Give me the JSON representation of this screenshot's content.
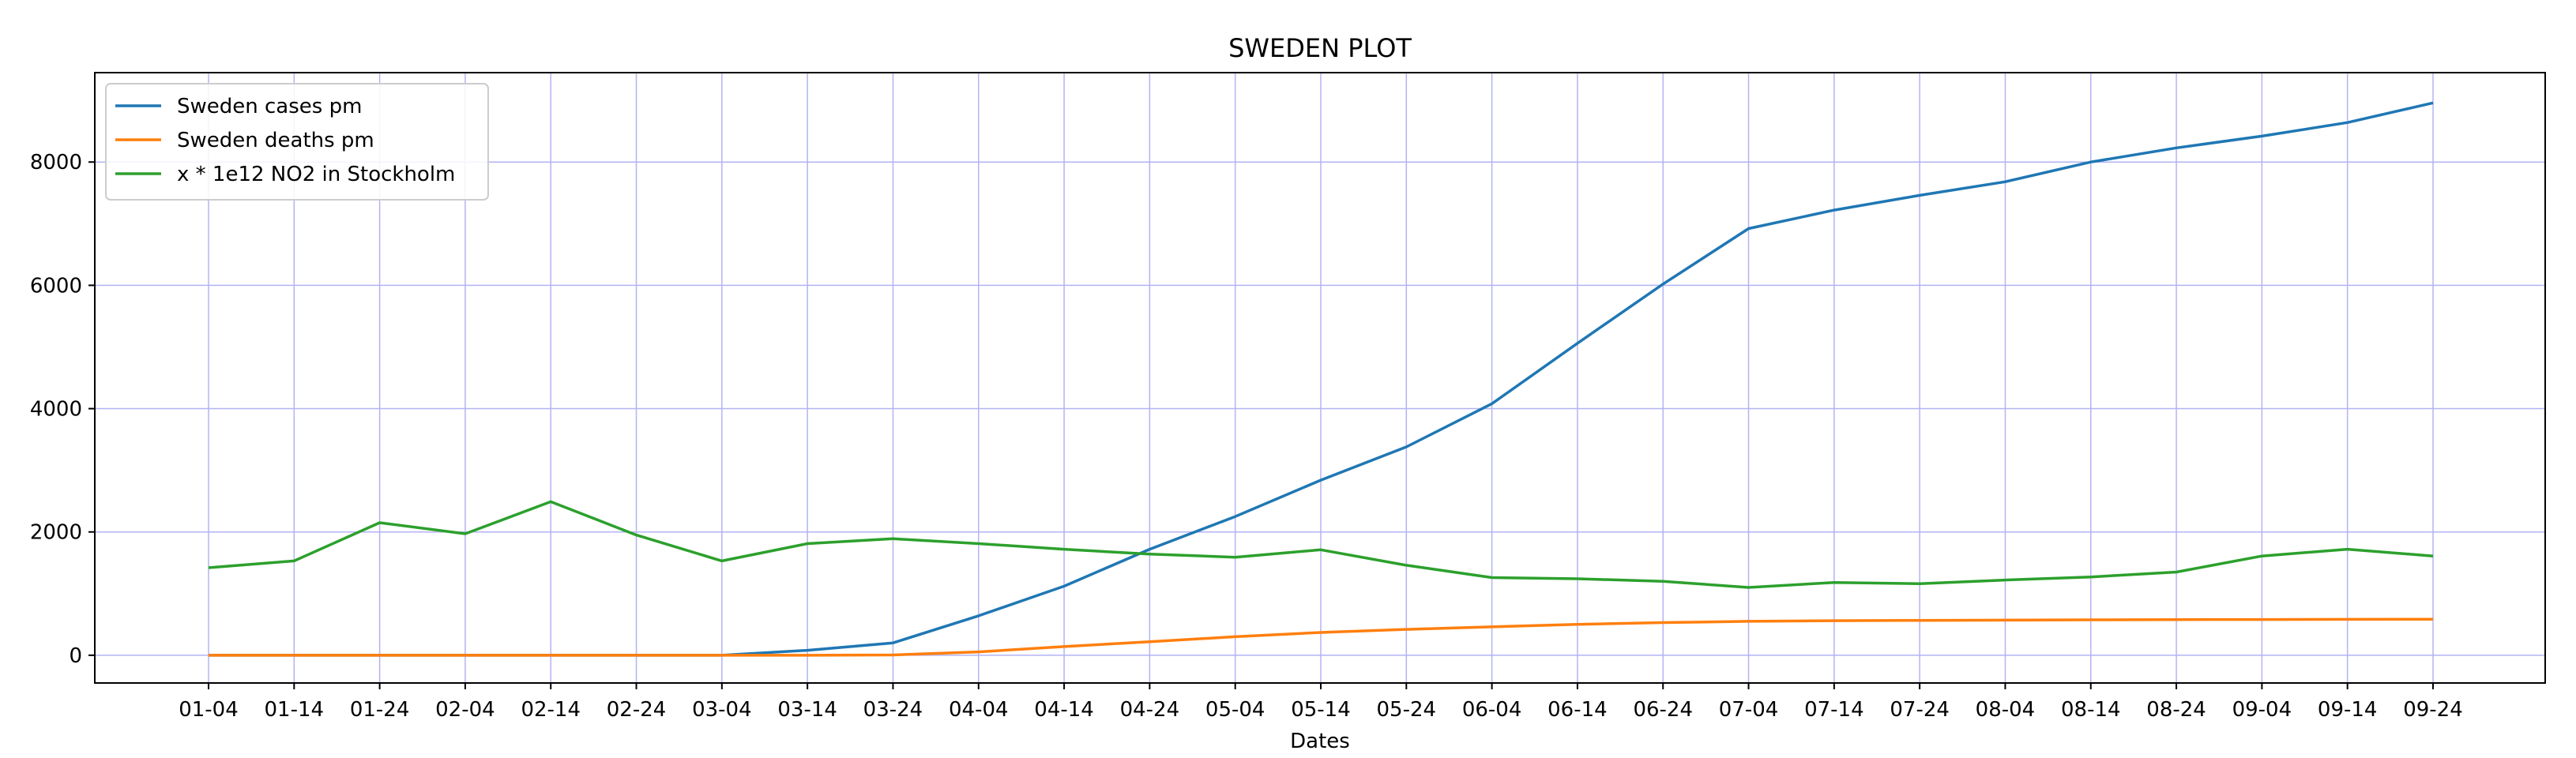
{
  "chart_data": {
    "type": "line",
    "title": "SWEDEN PLOT",
    "xlabel": "Dates",
    "ylabel": "",
    "ylim": [
      -450,
      9450
    ],
    "yticks": [
      0,
      2000,
      4000,
      6000,
      8000
    ],
    "grid": true,
    "grid_color": "#b3b3f5",
    "legend_position": "top-left",
    "categories": [
      "01-04",
      "01-14",
      "01-24",
      "02-04",
      "02-14",
      "02-24",
      "03-04",
      "03-14",
      "03-24",
      "04-04",
      "04-14",
      "04-24",
      "05-04",
      "05-14",
      "05-24",
      "06-04",
      "06-14",
      "06-24",
      "07-04",
      "07-14",
      "07-24",
      "08-04",
      "08-14",
      "08-24",
      "09-04",
      "09-14",
      "09-24"
    ],
    "series": [
      {
        "name": "Sweden cases pm",
        "color": "#1f77b4",
        "values": [
          0,
          0,
          0,
          0,
          0,
          0,
          0,
          80,
          200,
          640,
          1120,
          1720,
          2250,
          2840,
          3380,
          4080,
          5060,
          6020,
          6920,
          7220,
          7460,
          7680,
          8000,
          8230,
          8420,
          8640,
          8960
        ]
      },
      {
        "name": "Sweden deaths pm",
        "color": "#ff7f0e",
        "values": [
          0,
          0,
          0,
          0,
          0,
          0,
          0,
          0,
          5,
          55,
          140,
          220,
          300,
          370,
          420,
          460,
          500,
          530,
          550,
          560,
          565,
          570,
          575,
          578,
          580,
          582,
          585
        ]
      },
      {
        "name": "x * 1e12 NO2 in Stockholm",
        "color": "#2ca02c",
        "values": [
          1420,
          1530,
          2150,
          1970,
          2490,
          1950,
          1530,
          1810,
          1890,
          1810,
          1720,
          1640,
          1590,
          1710,
          1460,
          1260,
          1240,
          1200,
          1100,
          1180,
          1160,
          1220,
          1270,
          1350,
          1610,
          1720,
          1610
        ]
      }
    ]
  }
}
